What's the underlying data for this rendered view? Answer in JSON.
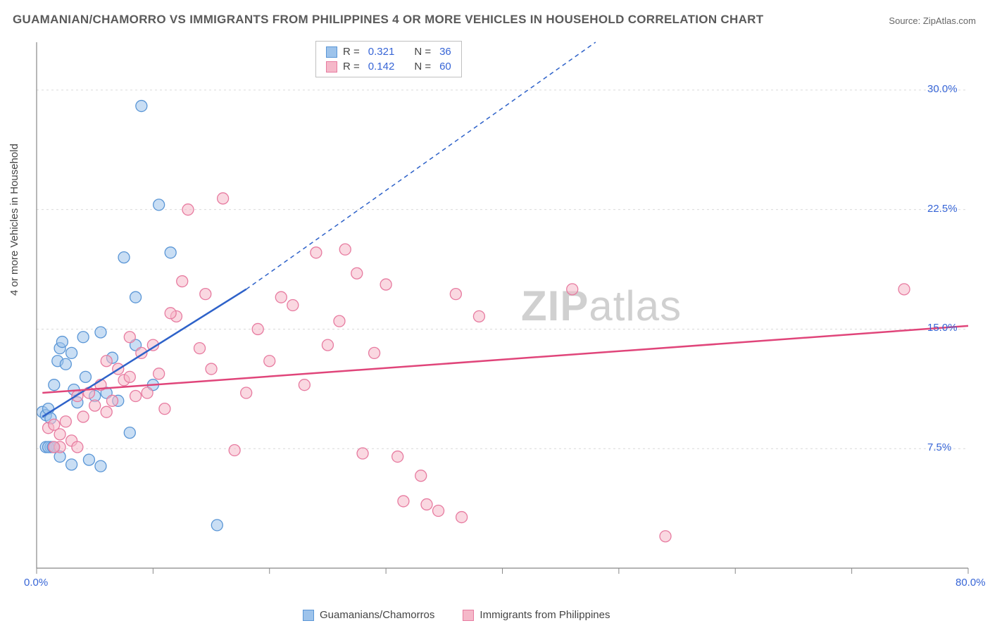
{
  "chart": {
    "type": "scatter",
    "title": "GUAMANIAN/CHAMORRO VS IMMIGRANTS FROM PHILIPPINES 4 OR MORE VEHICLES IN HOUSEHOLD CORRELATION CHART",
    "source_label": "Source:",
    "source_name": "ZipAtlas.com",
    "y_axis_label": "4 or more Vehicles in Household",
    "watermark_bold": "ZIP",
    "watermark_light": "atlas",
    "background_color": "#ffffff",
    "grid_color": "#d9d9d9",
    "axis_color": "#888888",
    "tick_label_color": "#3765d6",
    "x_range": [
      0,
      80
    ],
    "y_range": [
      0,
      33
    ],
    "x_ticks": [
      0,
      10,
      20,
      30,
      40,
      50,
      60,
      70,
      80
    ],
    "x_tick_labels": {
      "0": "0.0%",
      "80": "80.0%"
    },
    "y_gridlines": [
      7.5,
      15.0,
      22.5,
      30.0
    ],
    "y_tick_labels": [
      "7.5%",
      "15.0%",
      "22.5%",
      "30.0%"
    ],
    "marker_radius": 8,
    "marker_opacity": 0.55,
    "trend_line_width": 2.5,
    "trend_dash_pattern": "6,5",
    "series": [
      {
        "name": "Guamanians/Chamorros",
        "fill_color": "#9dc3eb",
        "stroke_color": "#5a96d6",
        "line_color": "#2e62c9",
        "R": "0.321",
        "N": "36",
        "trend_solid": {
          "x1": 0.5,
          "y1": 9.5,
          "x2": 18,
          "y2": 17.5
        },
        "trend_dashed": {
          "x1": 18,
          "y1": 17.5,
          "x2": 48,
          "y2": 33
        },
        "points": [
          [
            0.5,
            9.8
          ],
          [
            0.8,
            9.6
          ],
          [
            1.0,
            10.0
          ],
          [
            1.2,
            9.4
          ],
          [
            1.5,
            11.5
          ],
          [
            1.8,
            13.0
          ],
          [
            2.0,
            13.8
          ],
          [
            2.2,
            14.2
          ],
          [
            2.5,
            12.8
          ],
          [
            3.0,
            13.5
          ],
          [
            3.2,
            11.2
          ],
          [
            3.5,
            10.4
          ],
          [
            4.0,
            14.5
          ],
          [
            4.2,
            12.0
          ],
          [
            5.0,
            10.8
          ],
          [
            5.5,
            14.8
          ],
          [
            6.0,
            11.0
          ],
          [
            6.5,
            13.2
          ],
          [
            7.0,
            10.5
          ],
          [
            7.5,
            19.5
          ],
          [
            8.0,
            8.5
          ],
          [
            8.5,
            14.0
          ],
          [
            2.0,
            7.0
          ],
          [
            3.0,
            6.5
          ],
          [
            4.5,
            6.8
          ],
          [
            5.5,
            6.4
          ],
          [
            0.8,
            7.6
          ],
          [
            1.2,
            7.6
          ],
          [
            9.0,
            29.0
          ],
          [
            10.5,
            22.8
          ],
          [
            11.5,
            19.8
          ],
          [
            10.0,
            11.5
          ],
          [
            15.5,
            2.7
          ],
          [
            8.5,
            17.0
          ],
          [
            1.0,
            7.6
          ],
          [
            1.4,
            7.6
          ]
        ]
      },
      {
        "name": "Immigrants from Philippines",
        "fill_color": "#f5b8c9",
        "stroke_color": "#e77ba0",
        "line_color": "#e0457a",
        "R": "0.142",
        "N": "60",
        "trend_solid": {
          "x1": 0.5,
          "y1": 11.0,
          "x2": 80,
          "y2": 15.2
        },
        "points": [
          [
            1.0,
            8.8
          ],
          [
            1.5,
            9.0
          ],
          [
            2.0,
            8.4
          ],
          [
            2.5,
            9.2
          ],
          [
            3.0,
            8.0
          ],
          [
            3.5,
            10.8
          ],
          [
            4.0,
            9.5
          ],
          [
            4.5,
            11.0
          ],
          [
            5.0,
            10.2
          ],
          [
            5.5,
            11.5
          ],
          [
            6.0,
            9.8
          ],
          [
            6.5,
            10.5
          ],
          [
            7.0,
            12.5
          ],
          [
            7.5,
            11.8
          ],
          [
            8.0,
            12.0
          ],
          [
            8.5,
            10.8
          ],
          [
            9.0,
            13.5
          ],
          [
            9.5,
            11.0
          ],
          [
            10.0,
            14.0
          ],
          [
            10.5,
            12.2
          ],
          [
            11.0,
            10.0
          ],
          [
            12.0,
            15.8
          ],
          [
            12.5,
            18.0
          ],
          [
            13.0,
            22.5
          ],
          [
            14.0,
            13.8
          ],
          [
            14.5,
            17.2
          ],
          [
            15.0,
            12.5
          ],
          [
            16.0,
            23.2
          ],
          [
            17.0,
            7.4
          ],
          [
            18.0,
            11.0
          ],
          [
            19.0,
            15.0
          ],
          [
            20.0,
            13.0
          ],
          [
            21.0,
            17.0
          ],
          [
            22.0,
            16.5
          ],
          [
            23.0,
            11.5
          ],
          [
            24.0,
            19.8
          ],
          [
            25.0,
            14.0
          ],
          [
            26.0,
            15.5
          ],
          [
            26.5,
            20.0
          ],
          [
            27.5,
            18.5
          ],
          [
            28.0,
            7.2
          ],
          [
            29.0,
            13.5
          ],
          [
            30.0,
            17.8
          ],
          [
            31.0,
            7.0
          ],
          [
            33.0,
            5.8
          ],
          [
            36.0,
            17.2
          ],
          [
            38.0,
            15.8
          ],
          [
            31.5,
            4.2
          ],
          [
            33.5,
            4.0
          ],
          [
            34.5,
            3.6
          ],
          [
            36.5,
            3.2
          ],
          [
            46.0,
            17.5
          ],
          [
            54.0,
            2.0
          ],
          [
            74.5,
            17.5
          ],
          [
            2.0,
            7.6
          ],
          [
            3.5,
            7.6
          ],
          [
            1.5,
            7.6
          ],
          [
            8.0,
            14.5
          ],
          [
            11.5,
            16.0
          ],
          [
            6.0,
            13.0
          ]
        ]
      }
    ],
    "legend_top": {
      "R_label": "R =",
      "N_label": "N ="
    },
    "legend_bottom_labels": [
      "Guamanians/Chamorros",
      "Immigrants from Philippines"
    ]
  }
}
